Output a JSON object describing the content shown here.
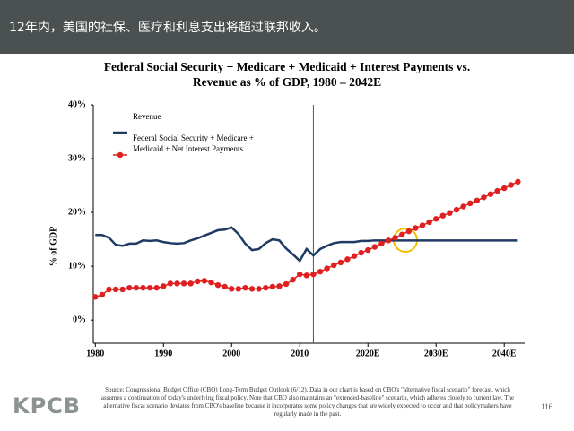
{
  "header": {
    "title": "12年内，美国的社保、医疗和利息支出将超过联邦收入。"
  },
  "chart_data": {
    "type": "line",
    "title": "Federal Social Security + Medicare + Medicaid + Interest Payments vs. Revenue as % of GDP, 1980 – 2042E",
    "y_label": "% of GDP",
    "x": [
      1980,
      1981,
      1982,
      1983,
      1984,
      1985,
      1986,
      1987,
      1988,
      1989,
      1990,
      1991,
      1992,
      1993,
      1994,
      1995,
      1996,
      1997,
      1998,
      1999,
      2000,
      2001,
      2002,
      2003,
      2004,
      2005,
      2006,
      2007,
      2008,
      2009,
      2010,
      2011,
      2012,
      2013,
      2014,
      2015,
      2016,
      2017,
      2018,
      2019,
      2020,
      2021,
      2022,
      2023,
      2024,
      2025,
      2026,
      2027,
      2028,
      2029,
      2030,
      2031,
      2032,
      2033,
      2034,
      2035,
      2036,
      2037,
      2038,
      2039,
      2040,
      2041,
      2042
    ],
    "series": [
      {
        "name": "Revenue",
        "color": "#1f3b63",
        "marker": false,
        "values": [
          15.8,
          15.8,
          15.3,
          14.0,
          13.8,
          14.2,
          14.2,
          14.8,
          14.7,
          14.8,
          14.5,
          14.3,
          14.2,
          14.3,
          14.8,
          15.2,
          15.7,
          16.2,
          16.7,
          16.8,
          17.2,
          16.0,
          14.2,
          13.0,
          13.2,
          14.3,
          15.0,
          14.8,
          13.3,
          12.2,
          11.0,
          13.2,
          12.0,
          13.2,
          13.8,
          14.3,
          14.5,
          14.5,
          14.5,
          14.7,
          14.7,
          14.8,
          14.8,
          14.8,
          14.8,
          14.8,
          14.8,
          14.8,
          14.8,
          14.8,
          14.8,
          14.8,
          14.8,
          14.8,
          14.8,
          14.8,
          14.8,
          14.8,
          14.8,
          14.8,
          14.8,
          14.8,
          14.8
        ]
      },
      {
        "name": "Federal Social Security + Medicare + Medicaid + Net Interest Payments",
        "color": "#e02020",
        "marker": true,
        "values": [
          4.3,
          4.7,
          5.7,
          5.7,
          5.7,
          6.0,
          6.0,
          6.0,
          6.0,
          6.0,
          6.3,
          6.8,
          6.8,
          6.8,
          6.8,
          7.2,
          7.3,
          7.0,
          6.5,
          6.2,
          5.8,
          5.8,
          6.0,
          5.8,
          5.8,
          6.0,
          6.2,
          6.3,
          6.7,
          7.5,
          8.5,
          8.3,
          8.5,
          9.0,
          9.6,
          10.2,
          10.7,
          11.3,
          11.9,
          12.5,
          13.0,
          13.6,
          14.2,
          14.8,
          15.3,
          15.9,
          16.5,
          17.1,
          17.6,
          18.2,
          18.8,
          19.4,
          19.9,
          20.5,
          21.1,
          21.7,
          22.2,
          22.8,
          23.4,
          24.0,
          24.5,
          25.1,
          25.7
        ]
      }
    ],
    "xlim": [
      1979.7,
      2043
    ],
    "ylim": [
      -4.3,
      40
    ],
    "xticks": [
      1980,
      1990,
      2000,
      2010,
      {
        "value": 2020,
        "label": "2020E"
      },
      {
        "value": 2030,
        "label": "2030E"
      },
      {
        "value": 2040,
        "label": "2040E"
      }
    ],
    "yticks": [
      {
        "value": 0,
        "label": "0%"
      },
      {
        "value": 10,
        "label": "10%"
      },
      {
        "value": 20,
        "label": "20%"
      },
      {
        "value": 30,
        "label": "30%"
      },
      {
        "value": 40,
        "label": "40%"
      }
    ],
    "vline": 2012,
    "grid": false
  },
  "footer": {
    "source": "Source: Congressional Budget Office (CBO) Long-Term Budget Outlook (6/12). Data in our chart is based on CBO's \"alternative fiscal scenario\" forecast, which assumes a continuation of today's underlying fiscal policy. Note that CBO also maintains an \"extended-baseline\" scenario, which adheres closely to current law. The alternative fiscal scenario deviates from CBO's baseline because it incorporates some policy changes that are widely expected to occur and that policymakers have regularly made in the past.",
    "logo": "KPCB",
    "page": "116"
  }
}
